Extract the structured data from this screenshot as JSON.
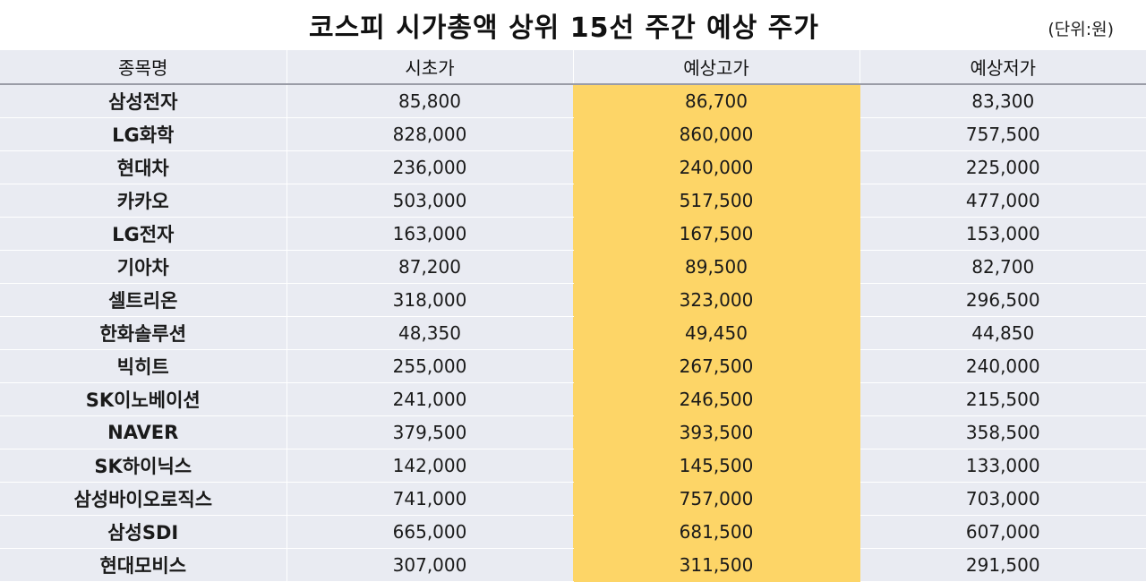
{
  "header": {
    "title": "코스피 시가총액 상위 15선 주간 예상 주가",
    "unit": "(단위:원)"
  },
  "table": {
    "columns": [
      "종목명",
      "시초가",
      "예상고가",
      "예상저가"
    ],
    "highlight_color": "#fdd567",
    "row_bg_color": "#e9ebf2",
    "rows": [
      {
        "name": "삼성전자",
        "open": "85,800",
        "high": "86,700",
        "low": "83,300"
      },
      {
        "name": "LG화학",
        "open": "828,000",
        "high": "860,000",
        "low": "757,500"
      },
      {
        "name": "현대차",
        "open": "236,000",
        "high": "240,000",
        "low": "225,000"
      },
      {
        "name": "카카오",
        "open": "503,000",
        "high": "517,500",
        "low": "477,000"
      },
      {
        "name": "LG전자",
        "open": "163,000",
        "high": "167,500",
        "low": "153,000"
      },
      {
        "name": "기아차",
        "open": "87,200",
        "high": "89,500",
        "low": "82,700"
      },
      {
        "name": "셀트리온",
        "open": "318,000",
        "high": "323,000",
        "low": "296,500"
      },
      {
        "name": "한화솔루션",
        "open": "48,350",
        "high": "49,450",
        "low": "44,850"
      },
      {
        "name": "빅히트",
        "open": "255,000",
        "high": "267,500",
        "low": "240,000"
      },
      {
        "name": "SK이노베이션",
        "open": "241,000",
        "high": "246,500",
        "low": "215,500"
      },
      {
        "name": "NAVER",
        "open": "379,500",
        "high": "393,500",
        "low": "358,500"
      },
      {
        "name": "SK하이닉스",
        "open": "142,000",
        "high": "145,500",
        "low": "133,000"
      },
      {
        "name": "삼성바이오로직스",
        "open": "741,000",
        "high": "757,000",
        "low": "703,000"
      },
      {
        "name": "삼성SDI",
        "open": "665,000",
        "high": "681,500",
        "low": "607,000"
      },
      {
        "name": "현대모비스",
        "open": "307,000",
        "high": "311,500",
        "low": "291,500"
      }
    ]
  }
}
